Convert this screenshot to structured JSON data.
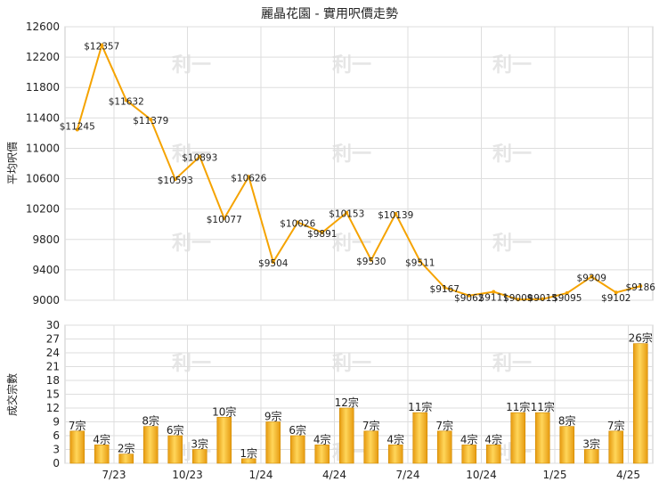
{
  "chart_data": [
    {
      "type": "line",
      "title": "麗晶花園 - 實用呎價走勢",
      "ylabel": "平均呎價",
      "ylim": [
        9000,
        12600
      ],
      "yticks": [
        9000,
        9400,
        9800,
        10200,
        10600,
        11000,
        11400,
        11800,
        12200,
        12600
      ],
      "x_tick_labels": [
        "7/23",
        "10/23",
        "1/24",
        "4/24",
        "7/24",
        "10/24",
        "1/25",
        "4/25"
      ],
      "line_color": "#f5a300",
      "grid": true,
      "series": [
        {
          "values": [
            11245,
            12357,
            11632,
            11379,
            10593,
            10893,
            10077,
            10626,
            9504,
            10026,
            9891,
            10153,
            9530,
            10139,
            9511,
            9167,
            9062,
            9111,
            9009,
            9015,
            9095,
            9309,
            9102,
            9186
          ],
          "labels": [
            "$11245",
            "$12357",
            "$11632",
            "$11379",
            "$10593",
            "$10893",
            "$10077",
            "$10626",
            "$9504",
            "$10026",
            "$9891",
            "$10153",
            "$9530",
            "$10139",
            "$9511",
            "$9167",
            "$9062",
            "$9111",
            "$9009",
            "$9015",
            "$9095",
            "$9309",
            "$9102",
            "$9186"
          ]
        }
      ]
    },
    {
      "type": "bar",
      "ylabel": "成交宗數",
      "ylim": [
        0,
        30
      ],
      "yticks": [
        0,
        3,
        6,
        9,
        12,
        15,
        18,
        21,
        24,
        27,
        30
      ],
      "x_tick_labels": [
        "7/23",
        "10/23",
        "1/24",
        "4/24",
        "7/24",
        "10/24",
        "1/25",
        "4/25"
      ],
      "bar_color": "#f2b21f",
      "grid": true,
      "series": [
        {
          "values": [
            7,
            4,
            2,
            8,
            6,
            3,
            10,
            1,
            9,
            6,
            4,
            12,
            7,
            4,
            11,
            7,
            4,
            4,
            11,
            11,
            8,
            3,
            7,
            26
          ],
          "labels": [
            "7宗",
            "4宗",
            "2宗",
            "8宗",
            "6宗",
            "3宗",
            "10宗",
            "1宗",
            "9宗",
            "6宗",
            "4宗",
            "12宗",
            "7宗",
            "4宗",
            "11宗",
            "7宗",
            "4宗",
            "4宗",
            "11宗",
            "11宗",
            "8宗",
            "3宗",
            "7宗",
            "26宗"
          ]
        }
      ]
    }
  ],
  "watermark": "利一"
}
